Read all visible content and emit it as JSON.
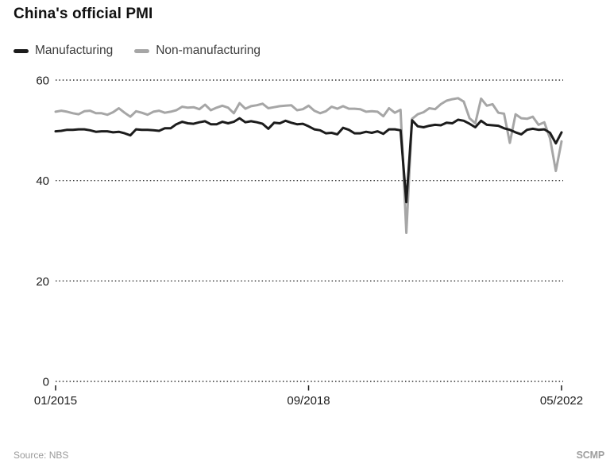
{
  "page": {
    "background": "#ffffff"
  },
  "header": {
    "title": "China's official PMI"
  },
  "legend": {
    "items": [
      {
        "label": "Manufacturing",
        "color": "#1c1c1c"
      },
      {
        "label": "Non-manufacturing",
        "color": "#a6a6a6"
      }
    ]
  },
  "chart_data": {
    "type": "line",
    "title": "China's official PMI",
    "x_unit": "month",
    "x_start": "01/2015",
    "x_end": "05/2022",
    "x_ticks": [
      {
        "index": 0,
        "label": "01/2015"
      },
      {
        "index": 44,
        "label": "09/2018"
      },
      {
        "index": 88,
        "label": "05/2022"
      }
    ],
    "ylim": [
      0,
      60
    ],
    "yticks": [
      0,
      20,
      40,
      60
    ],
    "grid": "dotted-horizontal",
    "grid_color": "#2e2e2e",
    "legend_position": "top-left",
    "series": [
      {
        "name": "Manufacturing",
        "color": "#1c1c1c",
        "values": [
          49.8,
          49.9,
          50.1,
          50.1,
          50.2,
          50.2,
          50.0,
          49.7,
          49.8,
          49.8,
          49.6,
          49.7,
          49.4,
          49.0,
          50.2,
          50.1,
          50.1,
          50.0,
          49.9,
          50.4,
          50.4,
          51.2,
          51.7,
          51.4,
          51.3,
          51.6,
          51.8,
          51.2,
          51.2,
          51.7,
          51.4,
          51.7,
          52.4,
          51.6,
          51.8,
          51.6,
          51.3,
          50.3,
          51.5,
          51.4,
          51.9,
          51.5,
          51.2,
          51.3,
          50.8,
          50.2,
          50.0,
          49.4,
          49.5,
          49.2,
          50.5,
          50.1,
          49.4,
          49.4,
          49.7,
          49.5,
          49.8,
          49.3,
          50.2,
          50.2,
          50.0,
          35.7,
          52.0,
          50.8,
          50.6,
          50.9,
          51.1,
          51.0,
          51.5,
          51.4,
          52.1,
          51.9,
          51.3,
          50.6,
          51.9,
          51.1,
          51.0,
          50.9,
          50.4,
          50.1,
          49.6,
          49.2,
          50.1,
          50.3,
          50.1,
          50.2,
          49.5,
          47.4,
          49.6
        ]
      },
      {
        "name": "Non-manufacturing",
        "color": "#a6a6a6",
        "values": [
          53.7,
          53.9,
          53.7,
          53.4,
          53.2,
          53.8,
          53.9,
          53.4,
          53.4,
          53.1,
          53.6,
          54.4,
          53.5,
          52.7,
          53.8,
          53.5,
          53.1,
          53.7,
          53.9,
          53.5,
          53.7,
          54.0,
          54.7,
          54.5,
          54.6,
          54.2,
          55.1,
          54.0,
          54.5,
          54.9,
          54.5,
          53.4,
          55.4,
          54.3,
          54.8,
          55.0,
          55.3,
          54.4,
          54.6,
          54.8,
          54.9,
          55.0,
          54.0,
          54.2,
          54.9,
          53.9,
          53.4,
          53.8,
          54.7,
          54.3,
          54.8,
          54.3,
          54.3,
          54.2,
          53.7,
          53.8,
          53.7,
          52.8,
          54.4,
          53.5,
          54.1,
          29.6,
          52.3,
          53.2,
          53.6,
          54.4,
          54.2,
          55.2,
          55.9,
          56.2,
          56.4,
          55.7,
          52.4,
          51.4,
          56.3,
          54.9,
          55.2,
          53.5,
          53.3,
          47.5,
          53.2,
          52.4,
          52.3,
          52.7,
          51.1,
          51.6,
          48.4,
          41.9,
          47.8
        ]
      }
    ]
  },
  "footer": {
    "source": "Source: NBS",
    "brand": "SCMP"
  }
}
